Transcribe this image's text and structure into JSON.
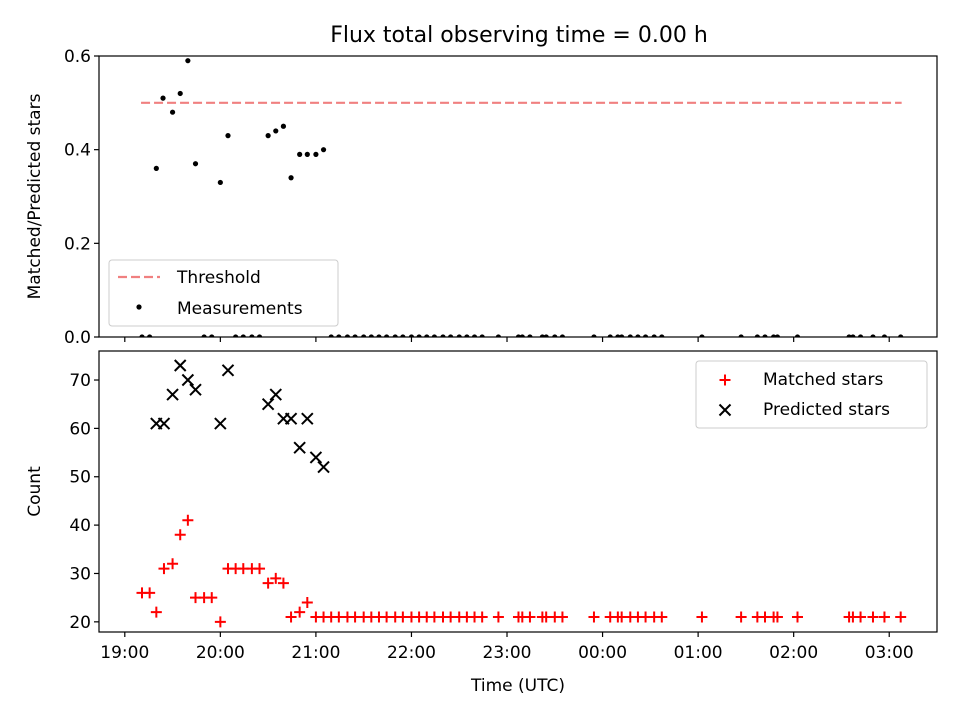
{
  "title": "Flux total observing time = 0.00 h",
  "chart_data": [
    {
      "type": "scatter",
      "panel": "top",
      "xlabel": "",
      "ylabel": "Matched/Predicted stars",
      "x_unit": "hours since 19:00 UTC",
      "xlim": [
        -0.27,
        8.5
      ],
      "ylim": [
        0,
        0.6
      ],
      "y_ticks": [
        0.0,
        0.2,
        0.4,
        0.6
      ],
      "y_tick_labels": [
        "0.0",
        "0.2",
        "0.4",
        "0.6"
      ],
      "legend_position": "lower left",
      "grid": false,
      "threshold": {
        "name": "Threshold",
        "y": 0.5,
        "x_range": [
          0.17,
          8.13
        ],
        "color": "#f08080",
        "style": "dashed"
      },
      "series": [
        {
          "name": "Measurements",
          "color": "#000000",
          "marker": "dot",
          "points": [
            {
              "x": 0.18,
              "y": 0.0
            },
            {
              "x": 0.26,
              "y": 0.0
            },
            {
              "x": 0.33,
              "y": 0.36
            },
            {
              "x": 0.4,
              "y": 0.51
            },
            {
              "x": 0.5,
              "y": 0.48
            },
            {
              "x": 0.58,
              "y": 0.52
            },
            {
              "x": 0.66,
              "y": 0.59
            },
            {
              "x": 0.74,
              "y": 0.37
            },
            {
              "x": 0.83,
              "y": 0.0
            },
            {
              "x": 0.91,
              "y": 0.0
            },
            {
              "x": 1.0,
              "y": 0.33
            },
            {
              "x": 1.08,
              "y": 0.43
            },
            {
              "x": 1.16,
              "y": 0.0
            },
            {
              "x": 1.24,
              "y": 0.0
            },
            {
              "x": 1.33,
              "y": 0.0
            },
            {
              "x": 1.41,
              "y": 0.0
            },
            {
              "x": 1.5,
              "y": 0.43
            },
            {
              "x": 1.58,
              "y": 0.44
            },
            {
              "x": 1.66,
              "y": 0.45
            },
            {
              "x": 1.74,
              "y": 0.34
            },
            {
              "x": 1.83,
              "y": 0.39
            },
            {
              "x": 1.91,
              "y": 0.39
            },
            {
              "x": 2.0,
              "y": 0.39
            },
            {
              "x": 2.08,
              "y": 0.4
            },
            {
              "x": 2.16,
              "y": 0.0
            },
            {
              "x": 2.24,
              "y": 0.0
            },
            {
              "x": 2.33,
              "y": 0.0
            },
            {
              "x": 2.41,
              "y": 0.0
            },
            {
              "x": 2.5,
              "y": 0.0
            },
            {
              "x": 2.58,
              "y": 0.0
            },
            {
              "x": 2.66,
              "y": 0.0
            },
            {
              "x": 2.74,
              "y": 0.0
            },
            {
              "x": 2.83,
              "y": 0.0
            },
            {
              "x": 2.91,
              "y": 0.0
            },
            {
              "x": 3.0,
              "y": 0.0
            },
            {
              "x": 3.08,
              "y": 0.0
            },
            {
              "x": 3.16,
              "y": 0.0
            },
            {
              "x": 3.24,
              "y": 0.0
            },
            {
              "x": 3.33,
              "y": 0.0
            },
            {
              "x": 3.41,
              "y": 0.0
            },
            {
              "x": 3.5,
              "y": 0.0
            },
            {
              "x": 3.58,
              "y": 0.0
            },
            {
              "x": 3.66,
              "y": 0.0
            },
            {
              "x": 3.74,
              "y": 0.0
            },
            {
              "x": 3.91,
              "y": 0.0
            },
            {
              "x": 4.12,
              "y": 0.0
            },
            {
              "x": 4.16,
              "y": 0.0
            },
            {
              "x": 4.24,
              "y": 0.0
            },
            {
              "x": 4.37,
              "y": 0.0
            },
            {
              "x": 4.41,
              "y": 0.0
            },
            {
              "x": 4.5,
              "y": 0.0
            },
            {
              "x": 4.58,
              "y": 0.0
            },
            {
              "x": 4.91,
              "y": 0.0
            },
            {
              "x": 5.08,
              "y": 0.0
            },
            {
              "x": 5.16,
              "y": 0.0
            },
            {
              "x": 5.2,
              "y": 0.0
            },
            {
              "x": 5.29,
              "y": 0.0
            },
            {
              "x": 5.37,
              "y": 0.0
            },
            {
              "x": 5.45,
              "y": 0.0
            },
            {
              "x": 5.54,
              "y": 0.0
            },
            {
              "x": 5.62,
              "y": 0.0
            },
            {
              "x": 6.04,
              "y": 0.0
            },
            {
              "x": 6.45,
              "y": 0.0
            },
            {
              "x": 6.62,
              "y": 0.0
            },
            {
              "x": 6.7,
              "y": 0.0
            },
            {
              "x": 6.79,
              "y": 0.0
            },
            {
              "x": 6.83,
              "y": 0.0
            },
            {
              "x": 7.04,
              "y": 0.0
            },
            {
              "x": 7.58,
              "y": 0.0
            },
            {
              "x": 7.62,
              "y": 0.0
            },
            {
              "x": 7.7,
              "y": 0.0
            },
            {
              "x": 7.83,
              "y": 0.0
            },
            {
              "x": 7.95,
              "y": 0.0
            },
            {
              "x": 8.12,
              "y": 0.0
            }
          ]
        }
      ]
    },
    {
      "type": "scatter",
      "panel": "bottom",
      "xlabel": "Time (UTC)",
      "ylabel": "Count",
      "x_unit": "hours since 19:00 UTC",
      "xlim": [
        -0.27,
        8.5
      ],
      "ylim": [
        17.9,
        76
      ],
      "x_ticks": [
        0,
        1,
        2,
        3,
        4,
        5,
        6,
        7,
        8
      ],
      "x_tick_labels": [
        "19:00",
        "20:00",
        "21:00",
        "22:00",
        "23:00",
        "00:00",
        "01:00",
        "02:00",
        "03:00"
      ],
      "y_ticks": [
        20,
        30,
        40,
        50,
        60,
        70
      ],
      "y_tick_labels": [
        "20",
        "30",
        "40",
        "50",
        "60",
        "70"
      ],
      "legend_position": "upper right",
      "grid": false,
      "series": [
        {
          "name": "Matched stars",
          "color": "#ff0000",
          "marker": "plus",
          "points": [
            {
              "x": 0.18,
              "y": 26
            },
            {
              "x": 0.26,
              "y": 26
            },
            {
              "x": 0.33,
              "y": 22
            },
            {
              "x": 0.41,
              "y": 31
            },
            {
              "x": 0.5,
              "y": 32
            },
            {
              "x": 0.58,
              "y": 38
            },
            {
              "x": 0.66,
              "y": 41
            },
            {
              "x": 0.74,
              "y": 25
            },
            {
              "x": 0.83,
              "y": 25
            },
            {
              "x": 0.91,
              "y": 25
            },
            {
              "x": 1.0,
              "y": 20
            },
            {
              "x": 1.08,
              "y": 31
            },
            {
              "x": 1.16,
              "y": 31
            },
            {
              "x": 1.24,
              "y": 31
            },
            {
              "x": 1.33,
              "y": 31
            },
            {
              "x": 1.41,
              "y": 31
            },
            {
              "x": 1.5,
              "y": 28
            },
            {
              "x": 1.58,
              "y": 29
            },
            {
              "x": 1.66,
              "y": 28
            },
            {
              "x": 1.74,
              "y": 21
            },
            {
              "x": 1.83,
              "y": 22
            },
            {
              "x": 1.91,
              "y": 24
            },
            {
              "x": 2.0,
              "y": 21
            },
            {
              "x": 2.08,
              "y": 21
            },
            {
              "x": 2.16,
              "y": 21
            },
            {
              "x": 2.24,
              "y": 21
            },
            {
              "x": 2.33,
              "y": 21
            },
            {
              "x": 2.41,
              "y": 21
            },
            {
              "x": 2.5,
              "y": 21
            },
            {
              "x": 2.58,
              "y": 21
            },
            {
              "x": 2.66,
              "y": 21
            },
            {
              "x": 2.74,
              "y": 21
            },
            {
              "x": 2.83,
              "y": 21
            },
            {
              "x": 2.91,
              "y": 21
            },
            {
              "x": 3.0,
              "y": 21
            },
            {
              "x": 3.08,
              "y": 21
            },
            {
              "x": 3.16,
              "y": 21
            },
            {
              "x": 3.24,
              "y": 21
            },
            {
              "x": 3.33,
              "y": 21
            },
            {
              "x": 3.41,
              "y": 21
            },
            {
              "x": 3.5,
              "y": 21
            },
            {
              "x": 3.58,
              "y": 21
            },
            {
              "x": 3.66,
              "y": 21
            },
            {
              "x": 3.74,
              "y": 21
            },
            {
              "x": 3.91,
              "y": 21
            },
            {
              "x": 4.12,
              "y": 21
            },
            {
              "x": 4.16,
              "y": 21
            },
            {
              "x": 4.24,
              "y": 21
            },
            {
              "x": 4.37,
              "y": 21
            },
            {
              "x": 4.41,
              "y": 21
            },
            {
              "x": 4.5,
              "y": 21
            },
            {
              "x": 4.58,
              "y": 21
            },
            {
              "x": 4.91,
              "y": 21
            },
            {
              "x": 5.08,
              "y": 21
            },
            {
              "x": 5.16,
              "y": 21
            },
            {
              "x": 5.2,
              "y": 21
            },
            {
              "x": 5.29,
              "y": 21
            },
            {
              "x": 5.37,
              "y": 21
            },
            {
              "x": 5.45,
              "y": 21
            },
            {
              "x": 5.54,
              "y": 21
            },
            {
              "x": 5.62,
              "y": 21
            },
            {
              "x": 6.04,
              "y": 21
            },
            {
              "x": 6.45,
              "y": 21
            },
            {
              "x": 6.62,
              "y": 21
            },
            {
              "x": 6.7,
              "y": 21
            },
            {
              "x": 6.79,
              "y": 21
            },
            {
              "x": 6.83,
              "y": 21
            },
            {
              "x": 7.04,
              "y": 21
            },
            {
              "x": 7.58,
              "y": 21
            },
            {
              "x": 7.62,
              "y": 21
            },
            {
              "x": 7.7,
              "y": 21
            },
            {
              "x": 7.83,
              "y": 21
            },
            {
              "x": 7.95,
              "y": 21
            },
            {
              "x": 8.12,
              "y": 21
            }
          ]
        },
        {
          "name": "Predicted stars",
          "color": "#000000",
          "marker": "x",
          "points": [
            {
              "x": 0.33,
              "y": 61
            },
            {
              "x": 0.41,
              "y": 61
            },
            {
              "x": 0.5,
              "y": 67
            },
            {
              "x": 0.58,
              "y": 73
            },
            {
              "x": 0.66,
              "y": 70
            },
            {
              "x": 0.74,
              "y": 68
            },
            {
              "x": 1.0,
              "y": 61
            },
            {
              "x": 1.08,
              "y": 72
            },
            {
              "x": 1.5,
              "y": 65
            },
            {
              "x": 1.58,
              "y": 67
            },
            {
              "x": 1.66,
              "y": 62
            },
            {
              "x": 1.74,
              "y": 62
            },
            {
              "x": 1.83,
              "y": 56
            },
            {
              "x": 1.91,
              "y": 62
            },
            {
              "x": 2.0,
              "y": 54
            },
            {
              "x": 2.08,
              "y": 52
            }
          ]
        }
      ]
    }
  ]
}
